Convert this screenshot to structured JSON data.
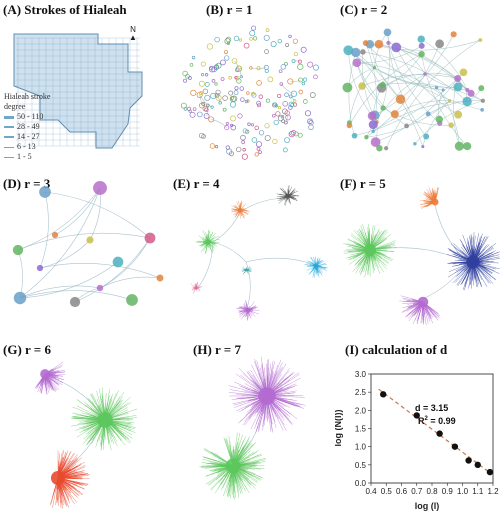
{
  "panels": {
    "a": {
      "label": "(A) Strokes of Hialeah",
      "legend_title_1": "Hialeah stroke",
      "legend_title_2": "degree",
      "legend_items": [
        "50 - 110",
        "28 - 49",
        "14 - 27",
        "6 - 13",
        "1 - 5"
      ],
      "north": "N"
    },
    "b": {
      "label": "(B) r = 1"
    },
    "c": {
      "label": "(C) r = 2"
    },
    "d": {
      "label": "(D) r = 3"
    },
    "e": {
      "label": "(E) r = 4"
    },
    "f": {
      "label": "(F) r = 5"
    },
    "g": {
      "label": "(G) r = 6"
    },
    "h": {
      "label": "(H) r = 7"
    },
    "i": {
      "label": "(I) calculation of d"
    }
  },
  "colors": {
    "map_fill": "#cfe1ee",
    "map_line": "#5e8fb3",
    "green": "#5cc65c",
    "blue": "#2f3f9e",
    "purple": "#b36ad0",
    "orange": "#f07a3a",
    "red": "#e84a2f",
    "cyan": "#27a8d8",
    "fit_line": "#c8784a"
  },
  "chart_data": {
    "type": "scatter",
    "title": "(I) calculation of d",
    "xlabel": "log (l)",
    "ylabel": "log (N(l))",
    "xlim": [
      0.4,
      1.2
    ],
    "ylim": [
      0.0,
      3.0
    ],
    "xticks": [
      "0.4",
      "0.5",
      "0.6",
      "0.7",
      "0.8",
      "0.9",
      "1.0",
      "1.1",
      "1.2"
    ],
    "yticks": [
      "0.0",
      "0.5",
      "1.0",
      "1.5",
      "2.0",
      "2.5",
      "3.0"
    ],
    "x": [
      0.48,
      0.7,
      0.85,
      0.95,
      1.04,
      1.1,
      1.18
    ],
    "y": [
      2.44,
      1.86,
      1.36,
      1.0,
      0.62,
      0.5,
      0.3
    ],
    "fit": {
      "slope": -3.15,
      "intercept": 4.0
    },
    "annotation_d": "d = 3.15",
    "annotation_r2_prefix": "R",
    "annotation_r2_sup": "2",
    "annotation_r2_value": " = 0.99",
    "legend": "none",
    "grid": false
  }
}
